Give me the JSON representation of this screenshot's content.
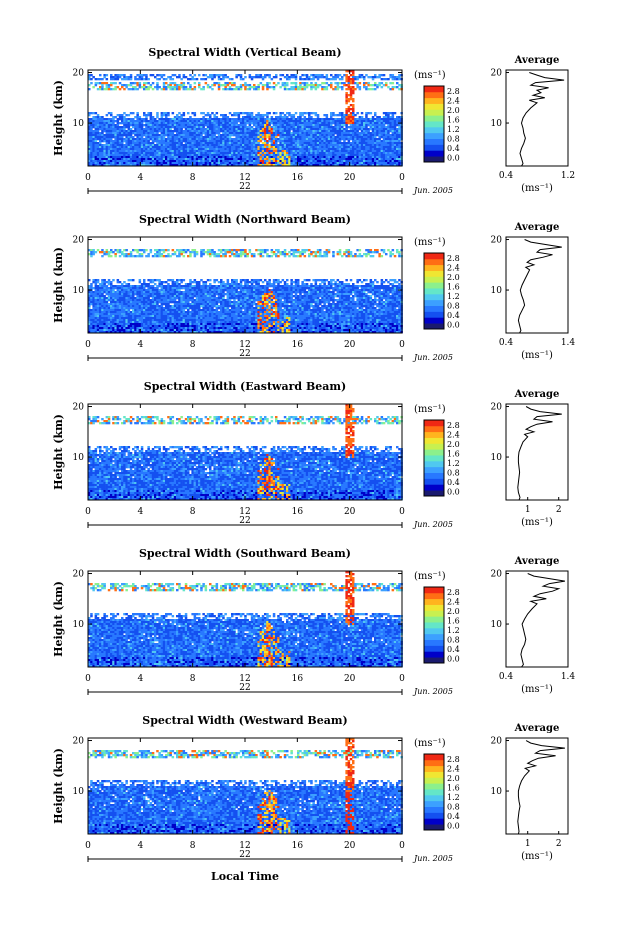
{
  "figure": {
    "x_axis_title": "Local Time",
    "y_axis_title": "Height (km)",
    "colorbar_unit": "(ms⁻¹)",
    "colorbar_ticks": [
      "0.0",
      "0.4",
      "0.8",
      "1.2",
      "1.6",
      "2.0",
      "2.4",
      "2.8"
    ],
    "month_label": "Jun. 2005",
    "average_title": "Average",
    "average_unit": "(ms⁻¹)",
    "colors": {
      "scale": [
        "#1a1a6e",
        "#0000c8",
        "#1450f0",
        "#2878ff",
        "#3ca0ff",
        "#50c8f0",
        "#64e6c8",
        "#8cf08c",
        "#c8f050",
        "#f0e632",
        "#ffb41e",
        "#ff6e14",
        "#f02814"
      ]
    }
  },
  "chart_data": [
    {
      "type": "heatmap",
      "title": "Spectral Width (Vertical Beam)",
      "day": "22",
      "x_ticks": [
        "0",
        "4",
        "8",
        "12",
        "16",
        "20",
        "0"
      ],
      "xlim": [
        0,
        24
      ],
      "y_ticks": [
        "20",
        "10"
      ],
      "ylim": [
        1.5,
        20.5
      ],
      "colorbar_range": [
        0.0,
        2.8
      ],
      "average": {
        "x_ticks": [
          "0.4",
          "1.2"
        ],
        "xlim": [
          0.4,
          1.2
        ],
        "y_ticks": [
          "20",
          "10"
        ],
        "profile": [
          [
            1.5,
            0.6
          ],
          [
            2,
            0.62
          ],
          [
            3,
            0.6
          ],
          [
            4,
            0.58
          ],
          [
            5,
            0.6
          ],
          [
            6,
            0.63
          ],
          [
            7,
            0.65
          ],
          [
            8,
            0.63
          ],
          [
            9,
            0.62
          ],
          [
            10,
            0.6
          ],
          [
            11,
            0.62
          ],
          [
            12,
            0.66
          ],
          [
            13,
            0.72
          ],
          [
            14,
            0.8
          ],
          [
            14.5,
            0.7
          ],
          [
            15,
            0.9
          ],
          [
            15.5,
            0.75
          ],
          [
            16,
            0.85
          ],
          [
            16.5,
            0.8
          ],
          [
            17,
            0.95
          ],
          [
            17.5,
            0.72
          ],
          [
            18,
            0.78
          ],
          [
            18.5,
            1.15
          ],
          [
            19,
            0.9
          ],
          [
            19.5,
            0.8
          ],
          [
            20,
            0.7
          ]
        ]
      }
    },
    {
      "type": "heatmap",
      "title": "Spectral Width (Northward Beam)",
      "day": "22",
      "x_ticks": [
        "0",
        "4",
        "8",
        "12",
        "16",
        "20",
        "0"
      ],
      "xlim": [
        0,
        24
      ],
      "y_ticks": [
        "20",
        "10"
      ],
      "ylim": [
        1.5,
        20.5
      ],
      "colorbar_range": [
        0.0,
        2.8
      ],
      "average": {
        "x_ticks": [
          "0.4",
          "1.4"
        ],
        "xlim": [
          0.4,
          1.4
        ],
        "y_ticks": [
          "20",
          "10"
        ],
        "profile": [
          [
            1.5,
            0.62
          ],
          [
            2,
            0.64
          ],
          [
            3,
            0.62
          ],
          [
            4,
            0.6
          ],
          [
            5,
            0.62
          ],
          [
            6,
            0.66
          ],
          [
            7,
            0.7
          ],
          [
            8,
            0.68
          ],
          [
            9,
            0.65
          ],
          [
            10,
            0.63
          ],
          [
            11,
            0.66
          ],
          [
            12,
            0.7
          ],
          [
            13,
            0.74
          ],
          [
            14,
            0.78
          ],
          [
            14.5,
            0.72
          ],
          [
            15,
            0.85
          ],
          [
            15.5,
            0.74
          ],
          [
            16,
            0.8
          ],
          [
            16.5,
            1.0
          ],
          [
            17,
            1.15
          ],
          [
            17.5,
            0.9
          ],
          [
            18,
            0.95
          ],
          [
            18.5,
            1.3
          ],
          [
            19,
            1.05
          ],
          [
            19.5,
            0.8
          ],
          [
            20,
            0.7
          ]
        ]
      }
    },
    {
      "type": "heatmap",
      "title": "Spectral Width (Eastward Beam)",
      "day": "22",
      "x_ticks": [
        "0",
        "4",
        "8",
        "12",
        "16",
        "20",
        "0"
      ],
      "xlim": [
        0,
        24
      ],
      "y_ticks": [
        "20",
        "10"
      ],
      "ylim": [
        1.5,
        20.5
      ],
      "colorbar_range": [
        0.0,
        2.8
      ],
      "average": {
        "x_ticks": [
          "1",
          "2"
        ],
        "xlim": [
          0.3,
          2.3
        ],
        "y_ticks": [
          "20",
          "10"
        ],
        "profile": [
          [
            1.5,
            0.72
          ],
          [
            2,
            0.75
          ],
          [
            3,
            0.7
          ],
          [
            4,
            0.68
          ],
          [
            5,
            0.7
          ],
          [
            6,
            0.72
          ],
          [
            7,
            0.74
          ],
          [
            8,
            0.72
          ],
          [
            9,
            0.7
          ],
          [
            10,
            0.7
          ],
          [
            11,
            0.72
          ],
          [
            12,
            0.78
          ],
          [
            13,
            0.85
          ],
          [
            14,
            1.0
          ],
          [
            14.5,
            0.9
          ],
          [
            15,
            1.2
          ],
          [
            15.5,
            0.95
          ],
          [
            16,
            1.1
          ],
          [
            16.5,
            1.3
          ],
          [
            17,
            1.8
          ],
          [
            17.5,
            1.2
          ],
          [
            18,
            1.3
          ],
          [
            18.5,
            2.1
          ],
          [
            19,
            1.4
          ],
          [
            19.5,
            1.1
          ],
          [
            20,
            0.95
          ]
        ]
      }
    },
    {
      "type": "heatmap",
      "title": "Spectral Width (Southward Beam)",
      "day": "22",
      "x_ticks": [
        "0",
        "4",
        "8",
        "12",
        "16",
        "20",
        "0"
      ],
      "xlim": [
        0,
        24
      ],
      "y_ticks": [
        "20",
        "10"
      ],
      "ylim": [
        1.5,
        20.5
      ],
      "colorbar_range": [
        0.0,
        2.8
      ],
      "average": {
        "x_ticks": [
          "0.4",
          "1.4"
        ],
        "xlim": [
          0.4,
          1.4
        ],
        "y_ticks": [
          "20",
          "10"
        ],
        "profile": [
          [
            1.5,
            0.65
          ],
          [
            2,
            0.68
          ],
          [
            3,
            0.66
          ],
          [
            4,
            0.64
          ],
          [
            5,
            0.66
          ],
          [
            6,
            0.7
          ],
          [
            7,
            0.72
          ],
          [
            8,
            0.7
          ],
          [
            9,
            0.68
          ],
          [
            10,
            0.66
          ],
          [
            11,
            0.7
          ],
          [
            12,
            0.75
          ],
          [
            13,
            0.82
          ],
          [
            14,
            0.9
          ],
          [
            14.5,
            0.8
          ],
          [
            15,
            1.05
          ],
          [
            15.5,
            0.85
          ],
          [
            16,
            0.95
          ],
          [
            16.5,
            1.15
          ],
          [
            17,
            1.25
          ],
          [
            17.5,
            1.0
          ],
          [
            18,
            1.1
          ],
          [
            18.5,
            1.35
          ],
          [
            19,
            1.1
          ],
          [
            19.5,
            0.85
          ],
          [
            20,
            0.75
          ]
        ]
      }
    },
    {
      "type": "heatmap",
      "title": "Spectral Width (Westward Beam)",
      "day": "22",
      "x_ticks": [
        "0",
        "4",
        "8",
        "12",
        "16",
        "20",
        "0"
      ],
      "xlim": [
        0,
        24
      ],
      "y_ticks": [
        "20",
        "10"
      ],
      "ylim": [
        1.5,
        20.5
      ],
      "colorbar_range": [
        0.0,
        2.8
      ],
      "average": {
        "x_ticks": [
          "1",
          "2"
        ],
        "xlim": [
          0.3,
          2.3
        ],
        "y_ticks": [
          "20",
          "10"
        ],
        "profile": [
          [
            1.5,
            0.7
          ],
          [
            2,
            0.72
          ],
          [
            3,
            0.7
          ],
          [
            4,
            0.68
          ],
          [
            5,
            0.7
          ],
          [
            6,
            0.72
          ],
          [
            7,
            0.75
          ],
          [
            8,
            0.72
          ],
          [
            9,
            0.7
          ],
          [
            10,
            0.7
          ],
          [
            11,
            0.74
          ],
          [
            12,
            0.8
          ],
          [
            13,
            0.9
          ],
          [
            14,
            1.05
          ],
          [
            14.5,
            0.92
          ],
          [
            15,
            1.25
          ],
          [
            15.5,
            1.0
          ],
          [
            16,
            1.15
          ],
          [
            16.5,
            1.35
          ],
          [
            17,
            1.9
          ],
          [
            17.5,
            1.25
          ],
          [
            18,
            1.4
          ],
          [
            18.5,
            2.2
          ],
          [
            19,
            1.45
          ],
          [
            19.5,
            1.1
          ],
          [
            20,
            0.95
          ]
        ]
      }
    }
  ]
}
